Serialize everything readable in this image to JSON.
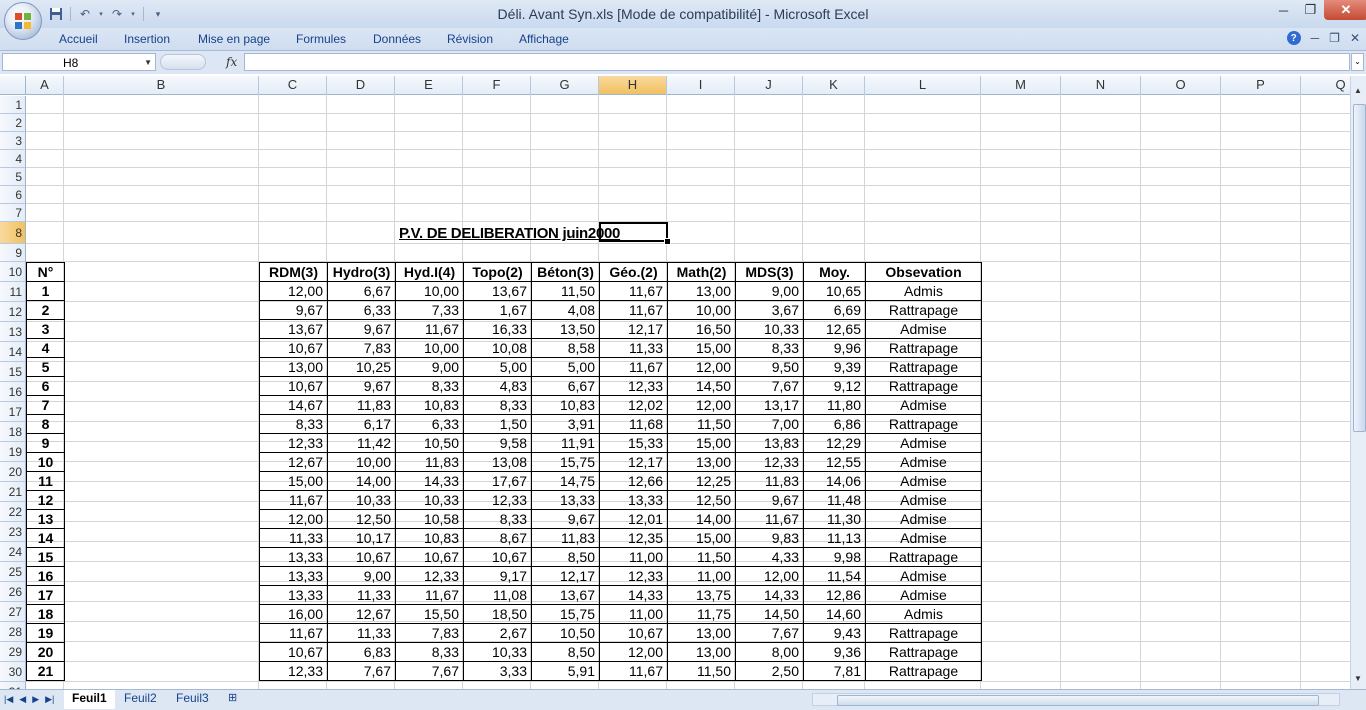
{
  "window": {
    "title": "Déli. Avant Syn.xls  [Mode de compatibilité] - Microsoft Excel",
    "office_logo_text": "Office"
  },
  "quick_access": [
    "save-icon",
    "undo-icon",
    "redo-icon",
    "customize-icon"
  ],
  "ribbon_tabs": [
    "Accueil",
    "Insertion",
    "Mise en page",
    "Formules",
    "Données",
    "Révision",
    "Affichage"
  ],
  "formula_bar": {
    "name_box": "H8",
    "fx_label": "fx",
    "formula": ""
  },
  "columns": [
    "A",
    "B",
    "C",
    "D",
    "E",
    "F",
    "G",
    "H",
    "I",
    "J",
    "K",
    "L",
    "M",
    "N",
    "O",
    "P",
    "Q"
  ],
  "active_column": "H",
  "active_row": "8",
  "rows": [
    "1",
    "2",
    "3",
    "4",
    "5",
    "6",
    "7",
    "8",
    "9",
    "10",
    "11",
    "12",
    "13",
    "14",
    "15",
    "16",
    "17",
    "18",
    "19",
    "20",
    "21",
    "22",
    "23",
    "24",
    "25",
    "26",
    "27",
    "28",
    "29",
    "30",
    "31"
  ],
  "sheet": {
    "title": "P.V. DE DELIBERATION juin2000",
    "headers": [
      "N°",
      "",
      "RDM(3)",
      "Hydro(3)",
      "Hyd.I(4)",
      "Topo(2)",
      "Béton(3)",
      "Géo.(2)",
      "Math(2)",
      "MDS(3)",
      "Moy.",
      "Obsevation"
    ],
    "records": [
      [
        "1",
        "",
        "12,00",
        "6,67",
        "10,00",
        "13,67",
        "11,50",
        "11,67",
        "13,00",
        "9,00",
        "10,65",
        "Admis"
      ],
      [
        "2",
        "",
        "9,67",
        "6,33",
        "7,33",
        "1,67",
        "4,08",
        "11,67",
        "10,00",
        "3,67",
        "6,69",
        "Rattrapage"
      ],
      [
        "3",
        "",
        "13,67",
        "9,67",
        "11,67",
        "16,33",
        "13,50",
        "12,17",
        "16,50",
        "10,33",
        "12,65",
        "Admise"
      ],
      [
        "4",
        "",
        "10,67",
        "7,83",
        "10,00",
        "10,08",
        "8,58",
        "11,33",
        "15,00",
        "8,33",
        "9,96",
        "Rattrapage"
      ],
      [
        "5",
        "",
        "13,00",
        "10,25",
        "9,00",
        "5,00",
        "5,00",
        "11,67",
        "12,00",
        "9,50",
        "9,39",
        "Rattrapage"
      ],
      [
        "6",
        "",
        "10,67",
        "9,67",
        "8,33",
        "4,83",
        "6,67",
        "12,33",
        "14,50",
        "7,67",
        "9,12",
        "Rattrapage"
      ],
      [
        "7",
        "",
        "14,67",
        "11,83",
        "10,83",
        "8,33",
        "10,83",
        "12,02",
        "12,00",
        "13,17",
        "11,80",
        "Admise"
      ],
      [
        "8",
        "",
        "8,33",
        "6,17",
        "6,33",
        "1,50",
        "3,91",
        "11,68",
        "11,50",
        "7,00",
        "6,86",
        "Rattrapage"
      ],
      [
        "9",
        "",
        "12,33",
        "11,42",
        "10,50",
        "9,58",
        "11,91",
        "15,33",
        "15,00",
        "13,83",
        "12,29",
        "Admise"
      ],
      [
        "10",
        "",
        "12,67",
        "10,00",
        "11,83",
        "13,08",
        "15,75",
        "12,17",
        "13,00",
        "12,33",
        "12,55",
        "Admise"
      ],
      [
        "11",
        "",
        "15,00",
        "14,00",
        "14,33",
        "17,67",
        "14,75",
        "12,66",
        "12,25",
        "11,83",
        "14,06",
        "Admise"
      ],
      [
        "12",
        "",
        "11,67",
        "10,33",
        "10,33",
        "12,33",
        "13,33",
        "13,33",
        "12,50",
        "9,67",
        "11,48",
        "Admise"
      ],
      [
        "13",
        "",
        "12,00",
        "12,50",
        "10,58",
        "8,33",
        "9,67",
        "12,01",
        "14,00",
        "11,67",
        "11,30",
        "Admise"
      ],
      [
        "14",
        "",
        "11,33",
        "10,17",
        "10,83",
        "8,67",
        "11,83",
        "12,35",
        "15,00",
        "9,83",
        "11,13",
        "Admise"
      ],
      [
        "15",
        "",
        "13,33",
        "10,67",
        "10,67",
        "10,67",
        "8,50",
        "11,00",
        "11,50",
        "4,33",
        "9,98",
        "Rattrapage"
      ],
      [
        "16",
        "",
        "13,33",
        "9,00",
        "12,33",
        "9,17",
        "12,17",
        "12,33",
        "11,00",
        "12,00",
        "11,54",
        "Admise"
      ],
      [
        "17",
        "",
        "13,33",
        "11,33",
        "11,67",
        "11,08",
        "13,67",
        "14,33",
        "13,75",
        "14,33",
        "12,86",
        "Admise"
      ],
      [
        "18",
        "",
        "16,00",
        "12,67",
        "15,50",
        "18,50",
        "15,75",
        "11,00",
        "11,75",
        "14,50",
        "14,60",
        "Admis"
      ],
      [
        "19",
        "",
        "11,67",
        "11,33",
        "7,83",
        "2,67",
        "10,50",
        "10,67",
        "13,00",
        "7,67",
        "9,43",
        "Rattrapage"
      ],
      [
        "20",
        "",
        "10,67",
        "6,83",
        "8,33",
        "10,33",
        "8,50",
        "12,00",
        "13,00",
        "8,00",
        "9,36",
        "Rattrapage"
      ],
      [
        "21",
        "",
        "12,33",
        "7,67",
        "7,67",
        "3,33",
        "5,91",
        "11,67",
        "11,50",
        "2,50",
        "7,81",
        "Rattrapage"
      ]
    ]
  },
  "sheet_tabs": [
    "Feuil1",
    "Feuil2",
    "Feuil3"
  ],
  "active_sheet": "Feuil1"
}
